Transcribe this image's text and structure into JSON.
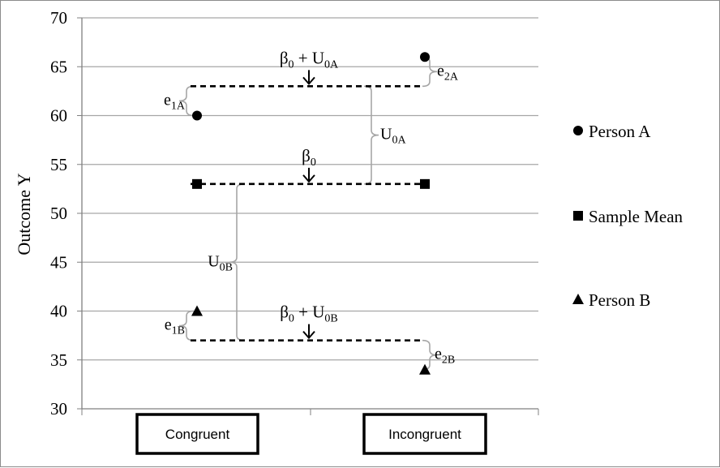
{
  "chart_data": {
    "type": "scatter",
    "ylabel": "Outcome Y",
    "xlabel": "",
    "title": "",
    "ylim": [
      30,
      70
    ],
    "ytick_step": 5,
    "yticks": [
      "70",
      "65",
      "60",
      "55",
      "50",
      "45",
      "40",
      "35",
      "30"
    ],
    "categories": [
      "Congruent",
      "Incongruent"
    ],
    "grid": true,
    "legend_position": "right",
    "series": [
      {
        "name": "Person A",
        "marker": "circle",
        "values": [
          60,
          66
        ]
      },
      {
        "name": "Sample Mean",
        "marker": "square",
        "values": [
          53,
          53
        ]
      },
      {
        "name": "Person B",
        "marker": "triangle",
        "values": [
          40,
          34
        ]
      }
    ],
    "reference_lines": [
      {
        "y": 63,
        "style": "dashed",
        "label_main": "β",
        "label_sub": "0",
        "label_rest": " + U",
        "label_sub2": "0A"
      },
      {
        "y": 53,
        "style": "dashed",
        "label_main": "β",
        "label_sub": "0",
        "label_rest": "",
        "label_sub2": ""
      },
      {
        "y": 37,
        "style": "dashed",
        "label_main": "β",
        "label_sub": "0",
        "label_rest": " + U",
        "label_sub2": "0B"
      }
    ],
    "brackets": [
      {
        "main": "e",
        "sub": "1A",
        "from": 60,
        "to": 63
      },
      {
        "main": "e",
        "sub": "2A",
        "from": 63,
        "to": 66
      },
      {
        "main": "U",
        "sub": "0A",
        "from": 53,
        "to": 63
      },
      {
        "main": "U",
        "sub": "0B",
        "from": 37,
        "to": 53
      },
      {
        "main": "e",
        "sub": "1B",
        "from": 37,
        "to": 40
      },
      {
        "main": "e",
        "sub": "2B",
        "from": 34,
        "to": 37
      }
    ],
    "colors": {
      "grid": "#a6a6a6",
      "marker": "#000000",
      "bracket": "#a6a6a6",
      "dash": "#000000"
    }
  }
}
